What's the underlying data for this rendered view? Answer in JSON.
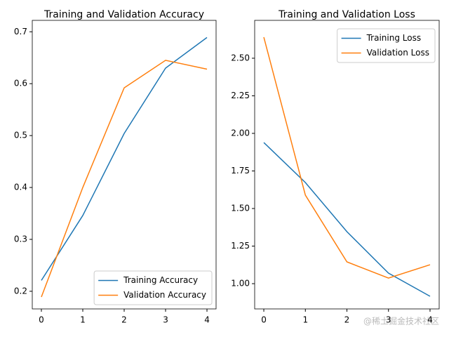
{
  "chart_data": [
    {
      "type": "line",
      "title": "Training and Validation Accuracy",
      "x": [
        0,
        1,
        2,
        3,
        4
      ],
      "series": [
        {
          "name": "Training Accuracy",
          "color": "#1f77b4",
          "values": [
            0.221,
            0.346,
            0.504,
            0.63,
            0.689
          ]
        },
        {
          "name": "Validation Accuracy",
          "color": "#ff7f0e",
          "values": [
            0.189,
            0.4,
            0.592,
            0.645,
            0.628
          ]
        }
      ],
      "xlim": [
        -0.22,
        4.22
      ],
      "xticks": [
        0,
        1,
        2,
        3,
        4
      ],
      "ylim": [
        0.166,
        0.722
      ],
      "yticks": [
        0.2,
        0.3,
        0.4,
        0.5,
        0.6,
        0.7
      ],
      "legend": "lower right"
    },
    {
      "type": "line",
      "title": "Training and Validation Loss",
      "x": [
        0,
        1,
        2,
        3,
        4
      ],
      "series": [
        {
          "name": "Training Loss",
          "color": "#1f77b4",
          "values": [
            1.939,
            1.673,
            1.346,
            1.07,
            0.916
          ]
        },
        {
          "name": "Validation Loss",
          "color": "#ff7f0e",
          "values": [
            2.64,
            1.589,
            1.145,
            1.037,
            1.126
          ]
        }
      ],
      "xlim": [
        -0.22,
        4.22
      ],
      "xticks": [
        0,
        1,
        2,
        3,
        4
      ],
      "ylim": [
        0.832,
        2.752
      ],
      "yticks": [
        {
          "value": 1,
          "label": "1.00"
        },
        1.25,
        {
          "value": 1.5,
          "label": "1.50"
        },
        1.75,
        {
          "value": 2,
          "label": "2.00"
        },
        2.25,
        {
          "value": 2.5,
          "label": "2.50"
        }
      ],
      "legend": "upper right"
    }
  ],
  "watermark": "@稀土掘金技术社区"
}
